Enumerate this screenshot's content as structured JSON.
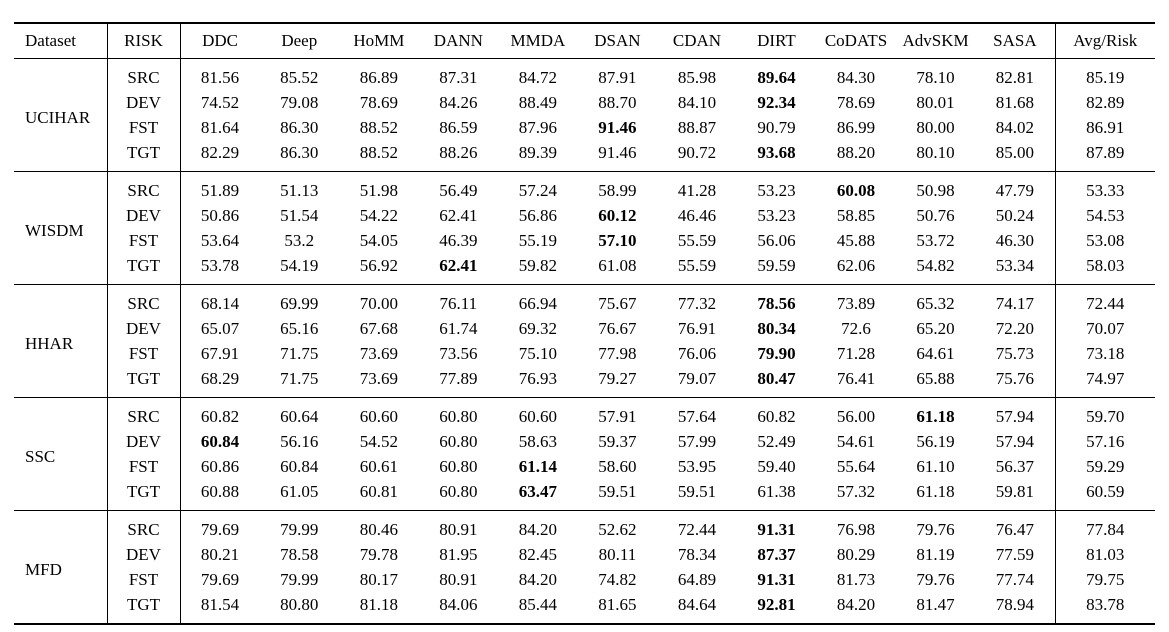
{
  "colors": {
    "background": "#ffffff",
    "text": "#000000",
    "rule": "#000000"
  },
  "table": {
    "columns": [
      "Dataset",
      "RISK",
      "DDC",
      "Deep",
      "HoMM",
      "DANN",
      "MMDA",
      "DSAN",
      "CDAN",
      "DIRT",
      "CoDATS",
      "AdvSKM",
      "SASA",
      "Avg/Risk"
    ],
    "groups": [
      {
        "dataset": "UCIHAR",
        "rows": [
          {
            "risk": "SRC",
            "values": [
              "81.56",
              "85.52",
              "86.89",
              "87.31",
              "84.72",
              "87.91",
              "85.98",
              "89.64",
              "84.30",
              "78.10",
              "82.81"
            ],
            "avg": "85.19",
            "bold": [
              7
            ]
          },
          {
            "risk": "DEV",
            "values": [
              "74.52",
              "79.08",
              "78.69",
              "84.26",
              "88.49",
              "88.70",
              "84.10",
              "92.34",
              "78.69",
              "80.01",
              "81.68"
            ],
            "avg": "82.89",
            "bold": [
              7
            ]
          },
          {
            "risk": "FST",
            "values": [
              "81.64",
              "86.30",
              "88.52",
              "86.59",
              "87.96",
              "91.46",
              "88.87",
              "90.79",
              "86.99",
              "80.00",
              "84.02"
            ],
            "avg": "86.91",
            "bold": [
              5
            ]
          },
          {
            "risk": "TGT",
            "values": [
              "82.29",
              "86.30",
              "88.52",
              "88.26",
              "89.39",
              "91.46",
              "90.72",
              "93.68",
              "88.20",
              "80.10",
              "85.00"
            ],
            "avg": "87.89",
            "bold": [
              7
            ]
          }
        ]
      },
      {
        "dataset": "WISDM",
        "rows": [
          {
            "risk": "SRC",
            "values": [
              "51.89",
              "51.13",
              "51.98",
              "56.49",
              "57.24",
              "58.99",
              "41.28",
              "53.23",
              "60.08",
              "50.98",
              "47.79"
            ],
            "avg": "53.33",
            "bold": [
              8
            ]
          },
          {
            "risk": "DEV",
            "values": [
              "50.86",
              "51.54",
              "54.22",
              "62.41",
              "56.86",
              "60.12",
              "46.46",
              "53.23",
              "58.85",
              "50.76",
              "50.24"
            ],
            "avg": "54.53",
            "bold": [
              5
            ]
          },
          {
            "risk": "FST",
            "values": [
              "53.64",
              "53.2",
              "54.05",
              "46.39",
              "55.19",
              "57.10",
              "55.59",
              "56.06",
              "45.88",
              "53.72",
              "46.30"
            ],
            "avg": "53.08",
            "bold": [
              5
            ]
          },
          {
            "risk": "TGT",
            "values": [
              "53.78",
              "54.19",
              "56.92",
              "62.41",
              "59.82",
              "61.08",
              "55.59",
              "59.59",
              "62.06",
              "54.82",
              "53.34"
            ],
            "avg": "58.03",
            "bold": [
              3
            ]
          }
        ]
      },
      {
        "dataset": "HHAR",
        "rows": [
          {
            "risk": "SRC",
            "values": [
              "68.14",
              "69.99",
              "70.00",
              "76.11",
              "66.94",
              "75.67",
              "77.32",
              "78.56",
              "73.89",
              "65.32",
              "74.17"
            ],
            "avg": "72.44",
            "bold": [
              7
            ]
          },
          {
            "risk": "DEV",
            "values": [
              "65.07",
              "65.16",
              "67.68",
              "61.74",
              "69.32",
              "76.67",
              "76.91",
              "80.34",
              "72.6",
              "65.20",
              "72.20"
            ],
            "avg": "70.07",
            "bold": [
              7
            ]
          },
          {
            "risk": "FST",
            "values": [
              "67.91",
              "71.75",
              "73.69",
              "73.56",
              "75.10",
              "77.98",
              "76.06",
              "79.90",
              "71.28",
              "64.61",
              "75.73"
            ],
            "avg": "73.18",
            "bold": [
              7
            ]
          },
          {
            "risk": "TGT",
            "values": [
              "68.29",
              "71.75",
              "73.69",
              "77.89",
              "76.93",
              "79.27",
              "79.07",
              "80.47",
              "76.41",
              "65.88",
              "75.76"
            ],
            "avg": "74.97",
            "bold": [
              7
            ]
          }
        ]
      },
      {
        "dataset": "SSC",
        "rows": [
          {
            "risk": "SRC",
            "values": [
              "60.82",
              "60.64",
              "60.60",
              "60.80",
              "60.60",
              "57.91",
              "57.64",
              "60.82",
              "56.00",
              "61.18",
              "57.94"
            ],
            "avg": "59.70",
            "bold": [
              9
            ]
          },
          {
            "risk": "DEV",
            "values": [
              "60.84",
              "56.16",
              "54.52",
              "60.80",
              "58.63",
              "59.37",
              "57.99",
              "52.49",
              "54.61",
              "56.19",
              "57.94"
            ],
            "avg": "57.16",
            "bold": [
              0
            ]
          },
          {
            "risk": "FST",
            "values": [
              "60.86",
              "60.84",
              "60.61",
              "60.80",
              "61.14",
              "58.60",
              "53.95",
              "59.40",
              "55.64",
              "61.10",
              "56.37"
            ],
            "avg": "59.29",
            "bold": [
              4
            ]
          },
          {
            "risk": "TGT",
            "values": [
              "60.88",
              "61.05",
              "60.81",
              "60.80",
              "63.47",
              "59.51",
              "59.51",
              "61.38",
              "57.32",
              "61.18",
              "59.81"
            ],
            "avg": "60.59",
            "bold": [
              4
            ]
          }
        ]
      },
      {
        "dataset": "MFD",
        "rows": [
          {
            "risk": "SRC",
            "values": [
              "79.69",
              "79.99",
              "80.46",
              "80.91",
              "84.20",
              "52.62",
              "72.44",
              "91.31",
              "76.98",
              "79.76",
              "76.47"
            ],
            "avg": "77.84",
            "bold": [
              7
            ]
          },
          {
            "risk": "DEV",
            "values": [
              "80.21",
              "78.58",
              "79.78",
              "81.95",
              "82.45",
              "80.11",
              "78.34",
              "87.37",
              "80.29",
              "81.19",
              "77.59"
            ],
            "avg": "81.03",
            "bold": [
              7
            ]
          },
          {
            "risk": "FST",
            "values": [
              "79.69",
              "79.99",
              "80.17",
              "80.91",
              "84.20",
              "74.82",
              "64.89",
              "91.31",
              "81.73",
              "79.76",
              "77.74"
            ],
            "avg": "79.75",
            "bold": [
              7
            ]
          },
          {
            "risk": "TGT",
            "values": [
              "81.54",
              "80.80",
              "81.18",
              "84.06",
              "85.44",
              "81.65",
              "84.64",
              "92.81",
              "84.20",
              "81.47",
              "78.94"
            ],
            "avg": "83.78",
            "bold": [
              7
            ]
          }
        ]
      }
    ]
  }
}
